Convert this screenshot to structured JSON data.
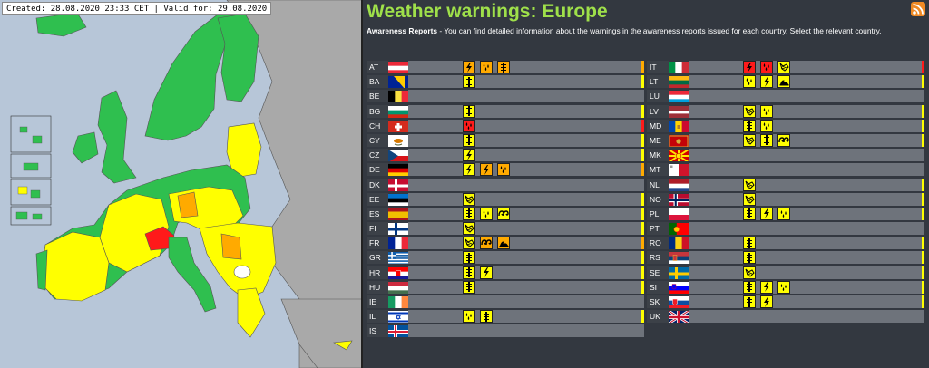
{
  "map": {
    "caption": "Created: 28.08.2020 23:33 CET | Valid for: 29.08.2020"
  },
  "header": {
    "title": "Weather warnings: Europe",
    "description_bold": "Awareness Reports",
    "description_rest": " - You can find detailed information about the warnings in the awareness reports issued for each country. Select the relevant country.",
    "rss_icon": "rss-icon"
  },
  "colors": {
    "yellow": "#ffff00",
    "orange": "#ffaa00",
    "red": "#ff1a1a",
    "title_green": "#9fe04a"
  },
  "countries_left": [
    {
      "code": "AT",
      "level": "orange",
      "warnings": [
        {
          "level": "orange",
          "type": "thunderstorm"
        },
        {
          "level": "orange",
          "type": "rain"
        },
        {
          "level": "orange",
          "type": "flood"
        }
      ]
    },
    {
      "code": "BA",
      "level": "yellow",
      "warnings": [
        {
          "level": "yellow",
          "type": "flood"
        }
      ]
    },
    {
      "code": "BE",
      "level": "none",
      "warnings": []
    },
    {
      "code": "BG",
      "level": "yellow",
      "warnings": [
        {
          "level": "yellow",
          "type": "flood"
        }
      ]
    },
    {
      "code": "CH",
      "level": "red",
      "warnings": [
        {
          "level": "red",
          "type": "rain"
        }
      ]
    },
    {
      "code": "CY",
      "level": "yellow",
      "warnings": [
        {
          "level": "yellow",
          "type": "flood"
        }
      ]
    },
    {
      "code": "CZ",
      "level": "yellow",
      "warnings": [
        {
          "level": "yellow",
          "type": "thunderstorm"
        }
      ]
    },
    {
      "code": "DE",
      "level": "orange",
      "warnings": [
        {
          "level": "yellow",
          "type": "thunderstorm"
        },
        {
          "level": "orange",
          "type": "thunderstorm"
        },
        {
          "level": "orange",
          "type": "rain"
        }
      ]
    },
    {
      "code": "DK",
      "level": "none",
      "warnings": []
    },
    {
      "code": "EE",
      "level": "yellow",
      "warnings": [
        {
          "level": "yellow",
          "type": "wind"
        }
      ]
    },
    {
      "code": "ES",
      "level": "yellow",
      "warnings": [
        {
          "level": "yellow",
          "type": "flood"
        },
        {
          "level": "yellow",
          "type": "rain"
        },
        {
          "level": "yellow",
          "type": "coastal"
        }
      ]
    },
    {
      "code": "FI",
      "level": "yellow",
      "warnings": [
        {
          "level": "yellow",
          "type": "wind"
        }
      ]
    },
    {
      "code": "FR",
      "level": "orange",
      "warnings": [
        {
          "level": "yellow",
          "type": "wind"
        },
        {
          "level": "orange",
          "type": "coastal"
        },
        {
          "level": "orange",
          "type": "waves"
        }
      ]
    },
    {
      "code": "GR",
      "level": "yellow",
      "warnings": [
        {
          "level": "yellow",
          "type": "flood"
        }
      ]
    },
    {
      "code": "HR",
      "level": "yellow",
      "warnings": [
        {
          "level": "yellow",
          "type": "flood"
        },
        {
          "level": "yellow",
          "type": "thunderstorm"
        }
      ]
    },
    {
      "code": "HU",
      "level": "yellow",
      "warnings": [
        {
          "level": "yellow",
          "type": "flood"
        }
      ]
    },
    {
      "code": "IE",
      "level": "none",
      "warnings": []
    },
    {
      "code": "IL",
      "level": "yellow",
      "warnings": [
        {
          "level": "yellow",
          "type": "rain"
        },
        {
          "level": "yellow",
          "type": "flood"
        }
      ]
    },
    {
      "code": "IS",
      "level": "none",
      "warnings": []
    }
  ],
  "countries_right": [
    {
      "code": "IT",
      "level": "red",
      "warnings": [
        {
          "level": "red",
          "type": "thunderstorm"
        },
        {
          "level": "red",
          "type": "rain"
        },
        {
          "level": "yellow",
          "type": "wind"
        }
      ]
    },
    {
      "code": "LT",
      "level": "yellow",
      "warnings": [
        {
          "level": "yellow",
          "type": "rain"
        },
        {
          "level": "yellow",
          "type": "thunderstorm"
        },
        {
          "level": "yellow",
          "type": "waves"
        }
      ]
    },
    {
      "code": "LU",
      "level": "none",
      "warnings": []
    },
    {
      "code": "LV",
      "level": "yellow",
      "warnings": [
        {
          "level": "yellow",
          "type": "wind"
        },
        {
          "level": "yellow",
          "type": "rain"
        }
      ]
    },
    {
      "code": "MD",
      "level": "yellow",
      "warnings": [
        {
          "level": "yellow",
          "type": "flood"
        },
        {
          "level": "yellow",
          "type": "rain"
        }
      ]
    },
    {
      "code": "ME",
      "level": "yellow",
      "warnings": [
        {
          "level": "yellow",
          "type": "wind"
        },
        {
          "level": "yellow",
          "type": "flood"
        },
        {
          "level": "yellow",
          "type": "coastal"
        }
      ]
    },
    {
      "code": "MK",
      "level": "none",
      "warnings": []
    },
    {
      "code": "MT",
      "level": "none",
      "warnings": []
    },
    {
      "code": "NL",
      "level": "yellow",
      "warnings": [
        {
          "level": "yellow",
          "type": "wind"
        }
      ]
    },
    {
      "code": "NO",
      "level": "yellow",
      "warnings": [
        {
          "level": "yellow",
          "type": "wind"
        }
      ]
    },
    {
      "code": "PL",
      "level": "yellow",
      "warnings": [
        {
          "level": "yellow",
          "type": "flood"
        },
        {
          "level": "yellow",
          "type": "thunderstorm"
        },
        {
          "level": "yellow",
          "type": "rain"
        }
      ]
    },
    {
      "code": "PT",
      "level": "none",
      "warnings": []
    },
    {
      "code": "RO",
      "level": "yellow",
      "warnings": [
        {
          "level": "yellow",
          "type": "flood"
        }
      ]
    },
    {
      "code": "RS",
      "level": "yellow",
      "warnings": [
        {
          "level": "yellow",
          "type": "flood"
        }
      ]
    },
    {
      "code": "SE",
      "level": "yellow",
      "warnings": [
        {
          "level": "yellow",
          "type": "wind"
        }
      ]
    },
    {
      "code": "SI",
      "level": "yellow",
      "warnings": [
        {
          "level": "yellow",
          "type": "flood"
        },
        {
          "level": "yellow",
          "type": "thunderstorm"
        },
        {
          "level": "yellow",
          "type": "rain"
        }
      ]
    },
    {
      "code": "SK",
      "level": "yellow",
      "warnings": [
        {
          "level": "yellow",
          "type": "flood"
        },
        {
          "level": "yellow",
          "type": "thunderstorm"
        }
      ]
    },
    {
      "code": "UK",
      "level": "none",
      "warnings": []
    }
  ]
}
